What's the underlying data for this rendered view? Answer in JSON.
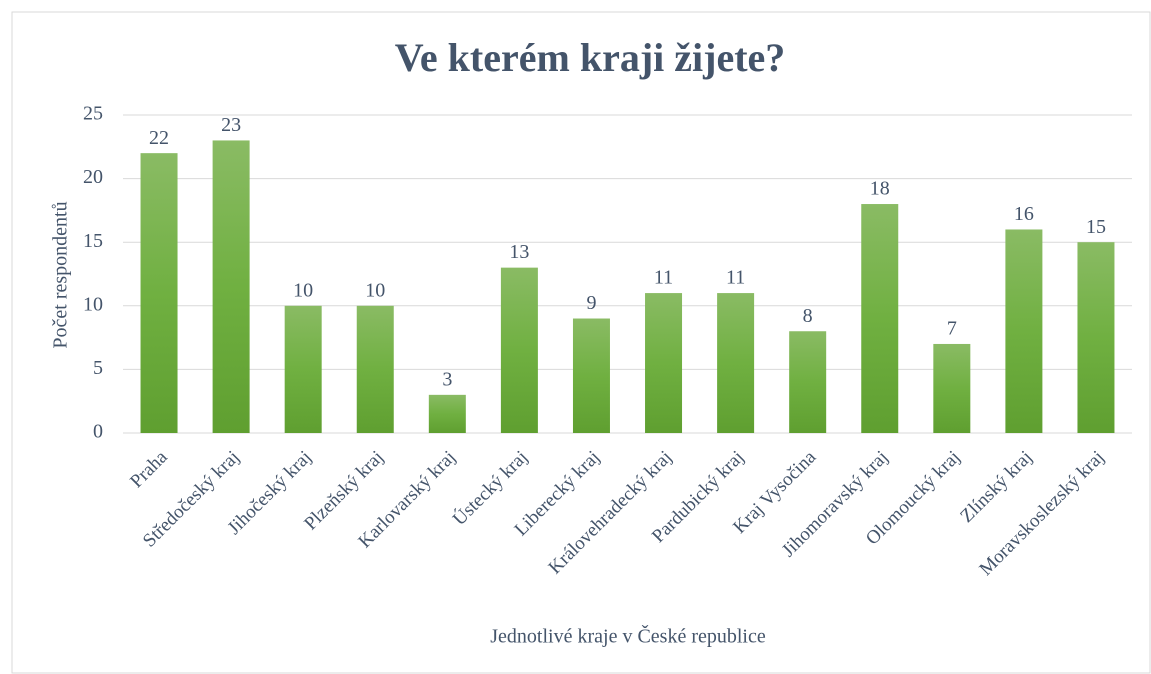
{
  "chart_data": {
    "type": "bar",
    "title": "Ve kterém kraji žijete?",
    "x_label": "Jednotlivé kraje v České republice",
    "y_label": "Počet respondentů",
    "categories": [
      "Praha",
      "Středočeský kraj",
      "Jihočeský kraj",
      "Plzeňský kraj",
      "Karlovarský kraj",
      "Ústecký kraj",
      "Liberecký kraj",
      "Královehradecký kraj",
      "Pardubický kraj",
      "Kraj Vysočina",
      "Jihomoravský kraj",
      "Olomoucký kraj",
      "Zlínský kraj",
      "Moravskoslezský kraj"
    ],
    "values": [
      22,
      23,
      10,
      10,
      3,
      13,
      9,
      11,
      11,
      8,
      18,
      7,
      16,
      15
    ],
    "color": "#70ad47",
    "ylim": [
      0,
      25
    ],
    "yticks": [
      0,
      5,
      10,
      15,
      20,
      25
    ],
    "grid": true
  }
}
